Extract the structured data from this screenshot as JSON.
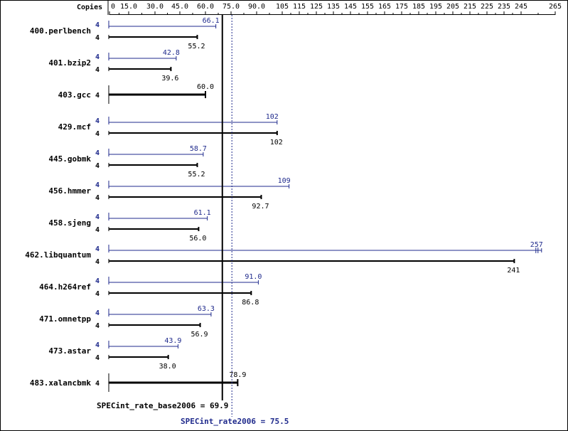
{
  "chart_data": {
    "type": "bar",
    "axis_header": "Copies",
    "ticks": [
      0,
      15.0,
      30.0,
      45.0,
      60.0,
      75.0,
      90.0,
      105,
      115,
      125,
      135,
      145,
      155,
      165,
      175,
      185,
      195,
      205,
      215,
      225,
      235,
      245,
      265
    ],
    "tick_labels": [
      "0",
      "15.0",
      "30.0",
      "45.0",
      "60.0",
      "75.0",
      "90.0",
      "105",
      "115",
      "125",
      "135",
      "145",
      "155",
      "165",
      "175",
      "185",
      "195",
      "205",
      "215",
      "225",
      "235",
      "245",
      "265"
    ],
    "series": [
      {
        "name": "peak",
        "color": "#1f2a8c"
      },
      {
        "name": "base",
        "color": "#000000"
      }
    ],
    "benchmarks": [
      {
        "name": "400.perlbench",
        "peak": {
          "copies": "4",
          "value": 66.1,
          "label": "66.1"
        },
        "base": {
          "copies": "4",
          "value": 55.2,
          "label": "55.2"
        }
      },
      {
        "name": "401.bzip2",
        "peak": {
          "copies": "4",
          "value": 42.8,
          "label": "42.8"
        },
        "base": {
          "copies": "4",
          "value": 39.6,
          "label": "39.6"
        }
      },
      {
        "name": "403.gcc",
        "single": true,
        "base": {
          "copies": "4",
          "value": 60.0,
          "label": "60.0"
        }
      },
      {
        "name": "429.mcf",
        "peak": {
          "copies": "4",
          "value": 102,
          "label": "102"
        },
        "base": {
          "copies": "4",
          "value": 102,
          "label": "102"
        }
      },
      {
        "name": "445.gobmk",
        "peak": {
          "copies": "4",
          "value": 58.7,
          "label": "58.7"
        },
        "base": {
          "copies": "4",
          "value": 55.2,
          "label": "55.2"
        }
      },
      {
        "name": "456.hmmer",
        "peak": {
          "copies": "4",
          "value": 109,
          "label": "109"
        },
        "base": {
          "copies": "4",
          "value": 92.7,
          "label": "92.7"
        }
      },
      {
        "name": "458.sjeng",
        "peak": {
          "copies": "4",
          "value": 61.1,
          "label": "61.1"
        },
        "base": {
          "copies": "4",
          "value": 56.0,
          "label": "56.0"
        }
      },
      {
        "name": "462.libquantum",
        "peak": {
          "copies": "4",
          "value": 257,
          "label": "257"
        },
        "base": {
          "copies": "4",
          "value": 241,
          "label": "241"
        }
      },
      {
        "name": "464.h264ref",
        "peak": {
          "copies": "4",
          "value": 91.0,
          "label": "91.0"
        },
        "base": {
          "copies": "4",
          "value": 86.8,
          "label": "86.8"
        }
      },
      {
        "name": "471.omnetpp",
        "peak": {
          "copies": "4",
          "value": 63.3,
          "label": "63.3"
        },
        "base": {
          "copies": "4",
          "value": 56.9,
          "label": "56.9"
        }
      },
      {
        "name": "473.astar",
        "peak": {
          "copies": "4",
          "value": 43.9,
          "label": "43.9"
        },
        "base": {
          "copies": "4",
          "value": 38.0,
          "label": "38.0"
        }
      },
      {
        "name": "483.xalancbmk",
        "single": true,
        "base": {
          "copies": "4",
          "value": 78.9,
          "label": "78.9"
        }
      }
    ],
    "base_summary": {
      "label": "SPECint_rate_base2006 = 69.9",
      "value": 69.9
    },
    "peak_summary": {
      "label": "SPECint_rate2006 = 75.5",
      "value": 75.5
    }
  }
}
